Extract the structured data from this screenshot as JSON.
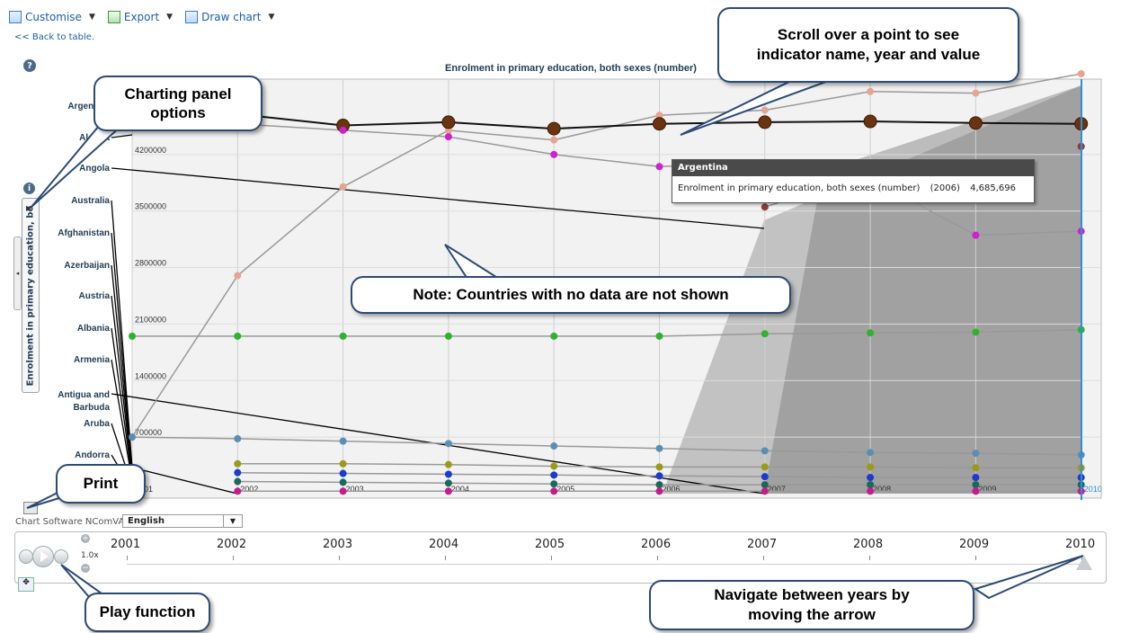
{
  "toolbar": {
    "customise": "Customise",
    "export": "Export",
    "draw_chart": "Draw chart"
  },
  "back_link": "<< Back to table.",
  "help_glyph": "?",
  "info_glyph": "i",
  "side_tab_label": "Enrolment in primary education, bo",
  "chart_data": {
    "type": "line",
    "title": "Enrolment in primary education, both sexes (number)",
    "x": [
      2001,
      2002,
      2003,
      2004,
      2005,
      2006,
      2007,
      2008,
      2009,
      2010
    ],
    "x_tick_labels": [
      "2001",
      "2002",
      "2003",
      "2004",
      "2005",
      "2006",
      "2007",
      "2008",
      "2009",
      "2010"
    ],
    "y_tick_labels": [
      "4200000",
      "3500000",
      "2800000",
      "2100000",
      "1400000",
      "700000"
    ],
    "ylim": [
      0,
      5000000
    ],
    "country_labels": [
      "Argentina",
      "Algeria",
      "Angola",
      "Australia",
      "Afghanistan",
      "Azerbaijan",
      "Austria",
      "Albania",
      "Armenia",
      "Antigua and Barbuda",
      "Aruba",
      "Andorra"
    ],
    "highlight_year": 2010,
    "series": [
      {
        "name": "Argentina",
        "color": "#e6a58f",
        "values": [
          700000,
          2700000,
          3800000,
          4500000,
          4380000,
          4685696,
          4750000,
          4980000,
          4960000,
          5200000
        ]
      },
      {
        "name": "Algeria",
        "color": "#6b3410",
        "values": [
          4650000,
          4700000,
          4560000,
          4600000,
          4520000,
          4580000,
          4600000,
          4610000,
          4590000,
          4580000
        ]
      },
      {
        "name": "Angola",
        "color": "#8c3a3a",
        "values": [
          null,
          null,
          null,
          null,
          null,
          null,
          3550000,
          3950000,
          null,
          4300000
        ]
      },
      {
        "name": "Afghanistan",
        "color": "#d020d0",
        "values": [
          null,
          4580000,
          4500000,
          4420000,
          4200000,
          4050000,
          4100000,
          3900000,
          3200000,
          3250000
        ]
      },
      {
        "name": "Australia",
        "color": "#2db42d",
        "values": [
          1950000,
          1950000,
          1950000,
          1950000,
          1950000,
          1950000,
          1980000,
          1990000,
          2000000,
          2030000
        ]
      },
      {
        "name": "Azerbaijan",
        "color": "#5a8fb5",
        "values": [
          700000,
          680000,
          650000,
          620000,
          590000,
          560000,
          530000,
          510000,
          500000,
          480000
        ]
      },
      {
        "name": "Austria",
        "color": "#9a9a1a",
        "values": [
          null,
          370000,
          370000,
          360000,
          340000,
          330000,
          330000,
          330000,
          320000,
          320000
        ]
      },
      {
        "name": "Albania",
        "color": "#1a3ad0",
        "values": [
          null,
          260000,
          250000,
          240000,
          230000,
          220000,
          210000,
          200000,
          200000,
          200000
        ]
      },
      {
        "name": "Armenia",
        "color": "#1a6a5a",
        "values": [
          null,
          150000,
          140000,
          130000,
          120000,
          110000,
          110000,
          110000,
          110000,
          110000
        ]
      },
      {
        "name": "Andorra",
        "color": "#c81a8c",
        "values": [
          null,
          30000,
          30000,
          30000,
          30000,
          30000,
          30000,
          30000,
          30000,
          30000
        ]
      }
    ]
  },
  "tooltip": {
    "country": "Argentina",
    "indicator": "Enrolment in primary education, both sexes (number)",
    "year": "(2006)",
    "value": "4,685,696"
  },
  "footer": {
    "software_label": "Chart Software NComVA©",
    "language": "English",
    "speed": "1.0x",
    "zoom_in": "+",
    "zoom_out": "−",
    "years": [
      "2001",
      "2002",
      "2003",
      "2004",
      "2005",
      "2006",
      "2007",
      "2008",
      "2009",
      "2010"
    ]
  },
  "callouts": {
    "scroll": "Scroll over a point to see indicator name, year and value",
    "charting_panel": "Charting panel options",
    "note": "Note: Countries with no data are not shown",
    "print": "Print",
    "play": "Play function",
    "navigate": "Navigate between years by moving the arrow"
  }
}
